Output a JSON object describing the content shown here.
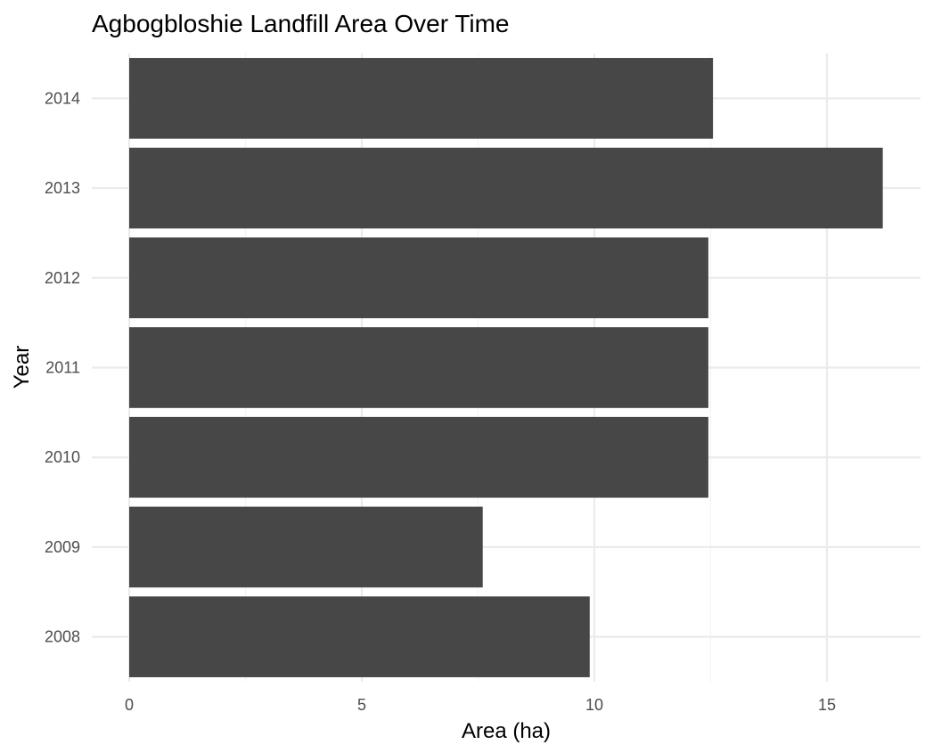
{
  "chart_data": {
    "type": "bar",
    "orientation": "horizontal",
    "title": "Agbogbloshie Landfill Area Over Time",
    "xlabel": "Area (ha)",
    "ylabel": "Year",
    "categories": [
      "2008",
      "2009",
      "2010",
      "2011",
      "2012",
      "2013",
      "2014"
    ],
    "values": [
      9.9,
      7.6,
      12.45,
      12.45,
      12.45,
      16.2,
      12.55
    ],
    "xlim": [
      0,
      17
    ],
    "x_ticks": [
      0,
      5,
      10,
      15
    ],
    "x_tick_labels": [
      "0",
      "5",
      "10",
      "15"
    ],
    "grid": true,
    "legend": "none",
    "colors": {
      "bar": "#474747",
      "grid_major": "#ebebeb",
      "grid_minor": "#f4f4f4",
      "background": "#ffffff",
      "tick_text": "#4d4d4d"
    }
  }
}
